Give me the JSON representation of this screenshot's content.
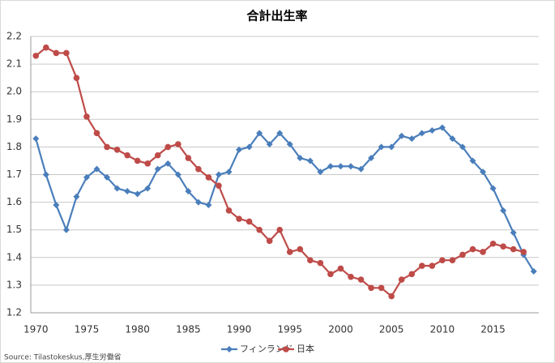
{
  "chart_data": {
    "type": "line",
    "title": "合計出生率",
    "source": "Source: Tilastokeskus,厚生労働省",
    "x": [
      1970,
      1971,
      1972,
      1973,
      1974,
      1975,
      1976,
      1977,
      1978,
      1979,
      1980,
      1981,
      1982,
      1983,
      1984,
      1985,
      1986,
      1987,
      1988,
      1989,
      1990,
      1991,
      1992,
      1993,
      1994,
      1995,
      1996,
      1997,
      1998,
      1999,
      2000,
      2001,
      2002,
      2003,
      2004,
      2005,
      2006,
      2007,
      2008,
      2009,
      2010,
      2011,
      2012,
      2013,
      2014,
      2015,
      2016,
      2017,
      2018,
      2019
    ],
    "series": [
      {
        "name": "フィンランド",
        "color": "#4a7ebb",
        "marker": "diamond",
        "values": [
          1.83,
          1.7,
          1.59,
          1.5,
          1.62,
          1.69,
          1.72,
          1.69,
          1.65,
          1.64,
          1.63,
          1.65,
          1.72,
          1.74,
          1.7,
          1.64,
          1.6,
          1.59,
          1.7,
          1.71,
          1.79,
          1.8,
          1.85,
          1.81,
          1.85,
          1.81,
          1.76,
          1.75,
          1.71,
          1.73,
          1.73,
          1.73,
          1.72,
          1.76,
          1.8,
          1.8,
          1.84,
          1.83,
          1.85,
          1.86,
          1.87,
          1.83,
          1.8,
          1.75,
          1.71,
          1.65,
          1.57,
          1.49,
          1.41,
          1.35
        ]
      },
      {
        "name": "日本",
        "color": "#be4b48",
        "marker": "circle",
        "values": [
          2.13,
          2.16,
          2.14,
          2.14,
          2.05,
          1.91,
          1.85,
          1.8,
          1.79,
          1.77,
          1.75,
          1.74,
          1.77,
          1.8,
          1.81,
          1.76,
          1.72,
          1.69,
          1.66,
          1.57,
          1.54,
          1.53,
          1.5,
          1.46,
          1.5,
          1.42,
          1.43,
          1.39,
          1.38,
          1.34,
          1.36,
          1.33,
          1.32,
          1.29,
          1.29,
          1.26,
          1.32,
          1.34,
          1.37,
          1.37,
          1.39,
          1.39,
          1.41,
          1.43,
          1.42,
          1.45,
          1.44,
          1.43,
          1.42,
          null
        ]
      }
    ],
    "xlim": [
      1969.5,
      2019.5
    ],
    "xticks": [
      1970,
      1975,
      1980,
      1985,
      1990,
      1995,
      2000,
      2005,
      2010,
      2015
    ],
    "ylim": [
      1.2,
      2.2
    ],
    "yticks": [
      1.2,
      1.3,
      1.4,
      1.5,
      1.6,
      1.7,
      1.8,
      1.9,
      {
        "value": 2.0,
        "label": "2.0"
      },
      2.1,
      2.2
    ],
    "grid": true,
    "legend": "bottom"
  }
}
